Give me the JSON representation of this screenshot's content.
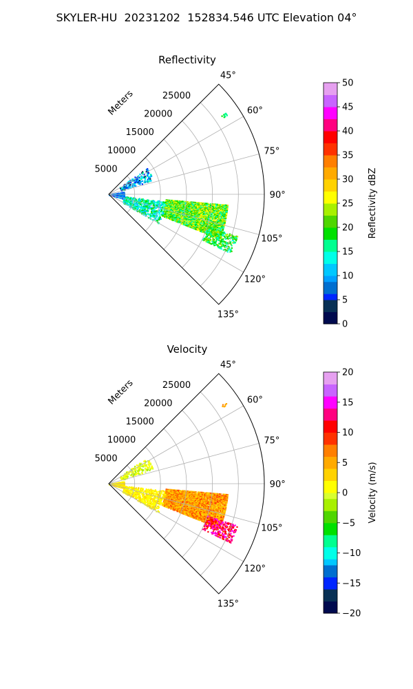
{
  "figure_title": "SKYLER-HU  20231202  152834.546 UTC Elevation 04°",
  "chart_data": [
    {
      "type": "heatmap",
      "subtype": "polar-sector (radar PPI)",
      "title": "Reflectivity",
      "radial_label": "Meters",
      "radial_ticks": [
        "5000",
        "10000",
        "15000",
        "20000",
        "25000"
      ],
      "radial_tick_values": [
        5000,
        10000,
        15000,
        20000,
        25000
      ],
      "range_max": 30000,
      "azimuth_ticks": [
        "45°",
        "60°",
        "75°",
        "90°",
        "105°",
        "120°",
        "135°"
      ],
      "azimuth_tick_values": [
        45,
        60,
        75,
        90,
        105,
        120,
        135
      ],
      "azimuth_range": [
        45,
        135
      ],
      "grid": true,
      "colorbar": {
        "label": "Reflectivity dBZ",
        "range": [
          0,
          50
        ],
        "ticks": [
          "0",
          "5",
          "10",
          "15",
          "20",
          "25",
          "30",
          "35",
          "40",
          "45",
          "50"
        ],
        "tick_values": [
          0,
          5,
          10,
          15,
          20,
          25,
          30,
          35,
          40,
          45,
          50
        ]
      },
      "echo_regions": [
        {
          "az": [
            95,
            112
          ],
          "range": [
            11000,
            23000
          ],
          "value_range": [
            14,
            28
          ],
          "density": 0.9
        },
        {
          "az": [
            108,
            116
          ],
          "range": [
            20000,
            26000
          ],
          "value_range": [
            14,
            24
          ],
          "density": 0.45
        },
        {
          "az": [
            97,
            120
          ],
          "range": [
            3000,
            11000
          ],
          "value_range": [
            10,
            20
          ],
          "density": 0.25
        },
        {
          "az": [
            80,
            106
          ],
          "range": [
            0,
            3000
          ],
          "value_range": [
            4,
            12
          ],
          "density": 0.55
        },
        {
          "az": [
            55,
            72
          ],
          "range": [
            2500,
            9000
          ],
          "value_range": [
            2,
            16
          ],
          "density": 0.15
        },
        {
          "az": [
            55,
            56
          ],
          "range": [
            26500,
            27500
          ],
          "value_range": [
            16,
            20
          ],
          "density": 0.6
        }
      ]
    },
    {
      "type": "heatmap",
      "subtype": "polar-sector (radar PPI)",
      "title": "Velocity",
      "radial_label": "Meters",
      "radial_ticks": [
        "5000",
        "10000",
        "15000",
        "20000",
        "25000"
      ],
      "radial_tick_values": [
        5000,
        10000,
        15000,
        20000,
        25000
      ],
      "range_max": 30000,
      "azimuth_ticks": [
        "45°",
        "60°",
        "75°",
        "90°",
        "105°",
        "120°",
        "135°"
      ],
      "azimuth_tick_values": [
        45,
        60,
        75,
        90,
        105,
        120,
        135
      ],
      "azimuth_range": [
        45,
        135
      ],
      "grid": true,
      "colorbar": {
        "label": "Velocity (m/s)",
        "range": [
          -20,
          20
        ],
        "ticks": [
          "−20",
          "−15",
          "−10",
          "−5",
          "0",
          "5",
          "10",
          "15",
          "20"
        ],
        "tick_values": [
          -20,
          -15,
          -10,
          -5,
          0,
          5,
          10,
          15,
          20
        ]
      },
      "echo_regions": [
        {
          "az": [
            95,
            112
          ],
          "range": [
            11000,
            23000
          ],
          "value_range": [
            2,
            9
          ],
          "density": 0.9
        },
        {
          "az": [
            108,
            116
          ],
          "range": [
            20000,
            26000
          ],
          "value_range": [
            9,
            16
          ],
          "density": 0.45
        },
        {
          "az": [
            97,
            120
          ],
          "range": [
            3000,
            11000
          ],
          "value_range": [
            0,
            3
          ],
          "density": 0.25
        },
        {
          "az": [
            80,
            106
          ],
          "range": [
            0,
            3000
          ],
          "value_range": [
            0,
            4
          ],
          "density": 0.55
        },
        {
          "az": [
            55,
            72
          ],
          "range": [
            2500,
            9000
          ],
          "value_range": [
            -2,
            2
          ],
          "density": 0.15
        },
        {
          "az": [
            55,
            56
          ],
          "range": [
            26500,
            27500
          ],
          "value_range": [
            4,
            8
          ],
          "density": 0.6
        }
      ]
    }
  ]
}
